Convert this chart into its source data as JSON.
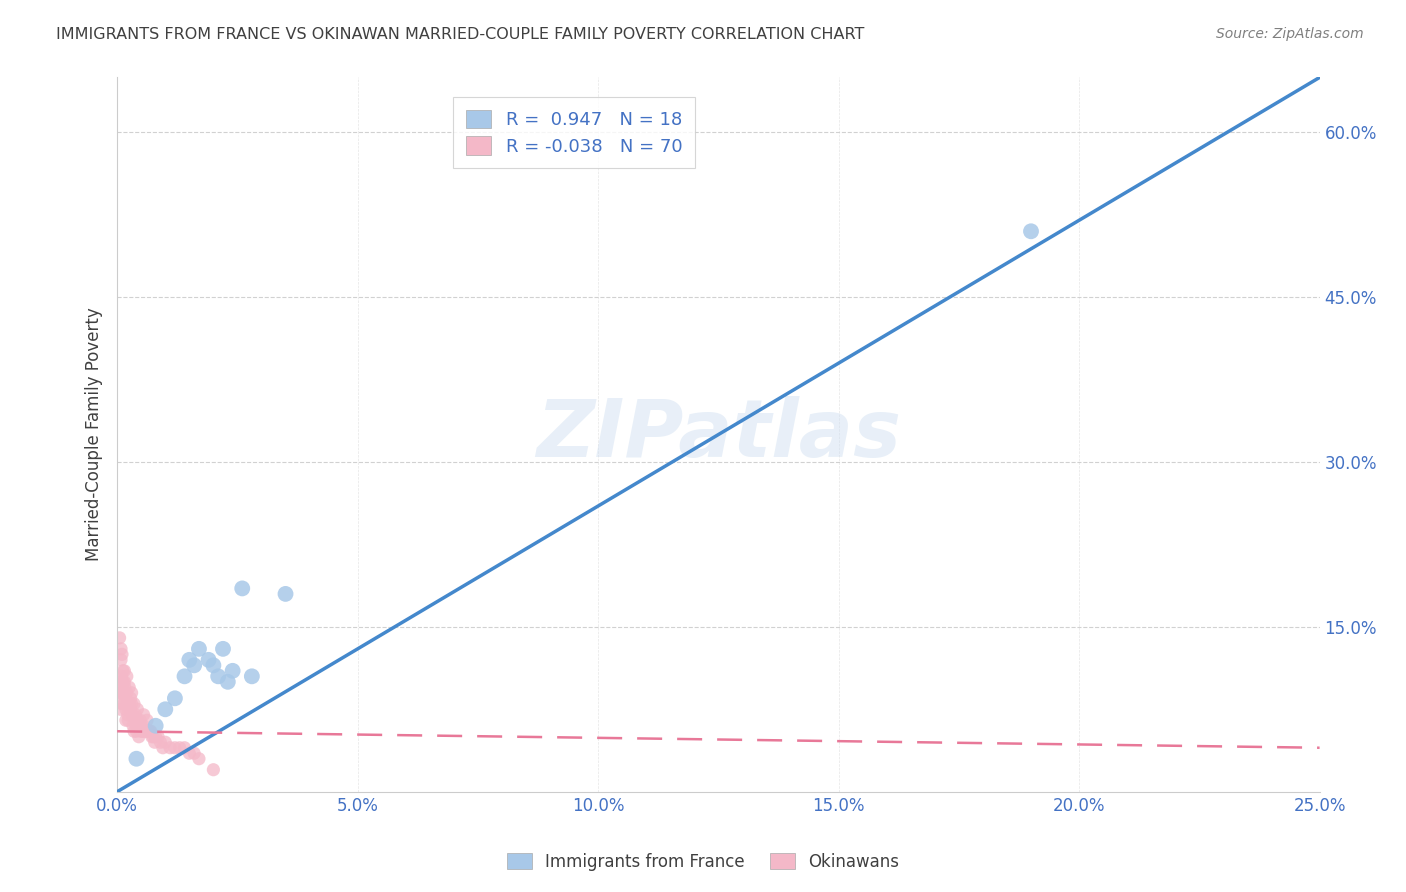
{
  "title": "IMMIGRANTS FROM FRANCE VS OKINAWAN MARRIED-COUPLE FAMILY POVERTY CORRELATION CHART",
  "source": "Source: ZipAtlas.com",
  "ylabel": "Married-Couple Family Poverty",
  "xlim": [
    0.0,
    25.0
  ],
  "ylim": [
    0.0,
    65.0
  ],
  "xtick_labels": [
    "0.0%",
    "5.0%",
    "10.0%",
    "15.0%",
    "20.0%",
    "25.0%"
  ],
  "xtick_values": [
    0.0,
    5.0,
    10.0,
    15.0,
    20.0,
    25.0
  ],
  "ytick_labels": [
    "15.0%",
    "30.0%",
    "45.0%",
    "60.0%"
  ],
  "ytick_values": [
    15.0,
    30.0,
    45.0,
    60.0
  ],
  "blue_color": "#a8c8e8",
  "pink_color": "#f4b8c8",
  "blue_line_color": "#4488cc",
  "pink_line_color": "#e87898",
  "axis_label_color": "#4472c4",
  "title_color": "#404040",
  "watermark": "ZIPatlas",
  "blue_scatter_x": [
    0.4,
    0.8,
    1.0,
    1.2,
    1.4,
    1.5,
    1.6,
    1.7,
    1.9,
    2.0,
    2.1,
    2.2,
    2.3,
    2.4,
    2.6,
    2.8,
    3.5,
    19.0
  ],
  "blue_scatter_y": [
    3.0,
    6.0,
    7.5,
    8.5,
    10.5,
    12.0,
    11.5,
    13.0,
    12.0,
    11.5,
    10.5,
    13.0,
    10.0,
    11.0,
    18.5,
    10.5,
    18.0,
    51.0
  ],
  "pink_scatter_x": [
    0.05,
    0.05,
    0.06,
    0.07,
    0.08,
    0.08,
    0.09,
    0.1,
    0.1,
    0.1,
    0.12,
    0.12,
    0.13,
    0.14,
    0.15,
    0.15,
    0.16,
    0.17,
    0.18,
    0.18,
    0.2,
    0.2,
    0.22,
    0.22,
    0.23,
    0.25,
    0.25,
    0.28,
    0.28,
    0.3,
    0.3,
    0.32,
    0.33,
    0.35,
    0.35,
    0.38,
    0.4,
    0.4,
    0.42,
    0.42,
    0.45,
    0.45,
    0.48,
    0.5,
    0.5,
    0.52,
    0.55,
    0.55,
    0.58,
    0.6,
    0.62,
    0.65,
    0.68,
    0.7,
    0.72,
    0.75,
    0.78,
    0.8,
    0.85,
    0.9,
    0.95,
    1.0,
    1.1,
    1.2,
    1.3,
    1.4,
    1.5,
    1.6,
    1.7,
    2.0
  ],
  "pink_scatter_y": [
    14.0,
    10.0,
    9.0,
    7.5,
    13.0,
    12.0,
    10.5,
    9.0,
    8.0,
    12.5,
    11.0,
    10.0,
    9.0,
    8.0,
    11.0,
    10.0,
    9.5,
    8.5,
    7.5,
    6.5,
    10.5,
    9.0,
    8.0,
    7.0,
    6.5,
    9.5,
    8.0,
    8.5,
    7.5,
    9.0,
    8.0,
    7.0,
    6.0,
    5.5,
    8.0,
    7.0,
    6.0,
    5.5,
    7.5,
    6.5,
    6.0,
    5.0,
    6.5,
    6.0,
    5.5,
    5.5,
    7.0,
    6.0,
    5.5,
    5.5,
    6.5,
    5.5,
    5.5,
    5.5,
    5.0,
    5.0,
    4.5,
    5.0,
    5.0,
    4.5,
    4.0,
    4.5,
    4.0,
    4.0,
    4.0,
    4.0,
    3.5,
    3.5,
    3.0,
    2.0
  ],
  "blue_trend_x": [
    0.0,
    25.0
  ],
  "blue_trend_y": [
    0.0,
    65.0
  ],
  "pink_trend_x": [
    0.0,
    25.0
  ],
  "pink_trend_y": [
    5.5,
    4.0
  ],
  "background_color": "#ffffff",
  "grid_color": "#cccccc"
}
